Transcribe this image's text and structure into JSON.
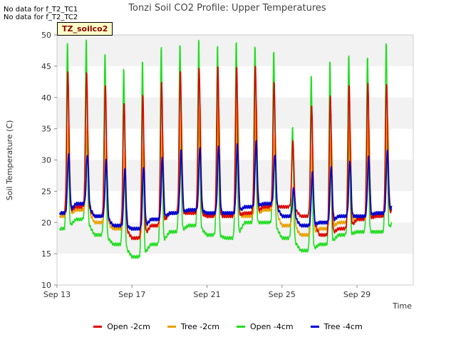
{
  "notes": [
    "No data for f_T2_TC1",
    "No data for f_T2_TC2"
  ],
  "badge": "TZ_soilco2",
  "chart_data": {
    "type": "line",
    "title": "Tonzi Soil CO2 Profile: Upper Temperatures",
    "xlabel": "Time",
    "ylabel": "Soil Temperature (C)",
    "xlim": [
      "Sep 13",
      "Oct 2"
    ],
    "ylim": [
      10,
      50
    ],
    "x_ticks": [
      "Sep 13",
      "Sep 17",
      "Sep 21",
      "Sep 25",
      "Sep 29"
    ],
    "y_ticks": [
      10,
      15,
      20,
      25,
      30,
      35,
      40,
      45,
      50
    ],
    "grid": "horizontal bands",
    "legend_position": "bottom-center",
    "series": [
      {
        "name": "Open -2cm",
        "color": "#dd0000",
        "daily_min": [
          21.5,
          22.5,
          21.0,
          19.5,
          17.5,
          19.5,
          21.5,
          21.5,
          21.0,
          21.0,
          21.5,
          22.5,
          22.5,
          21.0,
          18.0,
          19.0,
          20.5,
          21.0,
          22.5
        ],
        "daily_max": [
          44.5,
          44.0,
          42.0,
          39.5,
          40.5,
          42.5,
          44.5,
          45.0,
          45.0,
          45.0,
          45.5,
          42.5,
          33.0,
          39.0,
          40.5,
          42.0,
          42.5,
          42.5,
          42.5
        ]
      },
      {
        "name": "Tree -2cm",
        "color": "#e8a000",
        "daily_min": [
          21.0,
          22.0,
          20.0,
          19.0,
          17.5,
          19.5,
          21.5,
          21.5,
          21.0,
          21.0,
          21.0,
          22.0,
          19.5,
          18.0,
          19.0,
          20.0,
          20.5,
          21.5,
          22.0
        ],
        "daily_max": [
          36.0,
          36.0,
          33.5,
          31.5,
          33.0,
          35.0,
          37.5,
          39.0,
          39.0,
          39.5,
          39.5,
          34.5,
          26.0,
          32.5,
          34.5,
          36.5,
          36.5,
          37.0,
          37.0
        ]
      },
      {
        "name": "Open -4cm",
        "color": "#22dd22",
        "daily_min": [
          19.0,
          20.5,
          18.0,
          16.5,
          14.5,
          16.5,
          18.5,
          19.5,
          18.0,
          17.5,
          20.0,
          20.0,
          17.5,
          15.5,
          16.5,
          18.0,
          18.5,
          18.5,
          20.5
        ],
        "daily_max": [
          49.0,
          49.5,
          47.5,
          45.0,
          46.0,
          48.5,
          49.0,
          49.5,
          48.5,
          49.5,
          48.5,
          47.5,
          35.5,
          44.0,
          46.0,
          47.0,
          47.0,
          49.0,
          48.5
        ]
      },
      {
        "name": "Tree -4cm",
        "color": "#0000cc",
        "daily_min": [
          21.5,
          23.0,
          21.0,
          19.5,
          19.0,
          20.5,
          21.5,
          22.0,
          21.5,
          21.5,
          22.5,
          23.0,
          21.0,
          19.5,
          20.0,
          21.0,
          21.0,
          21.5,
          23.0
        ],
        "daily_max": [
          31.0,
          31.0,
          30.0,
          28.5,
          29.0,
          30.5,
          31.5,
          32.0,
          32.5,
          32.5,
          33.0,
          31.0,
          25.5,
          28.0,
          29.0,
          30.0,
          30.5,
          31.5,
          31.0
        ]
      }
    ]
  }
}
